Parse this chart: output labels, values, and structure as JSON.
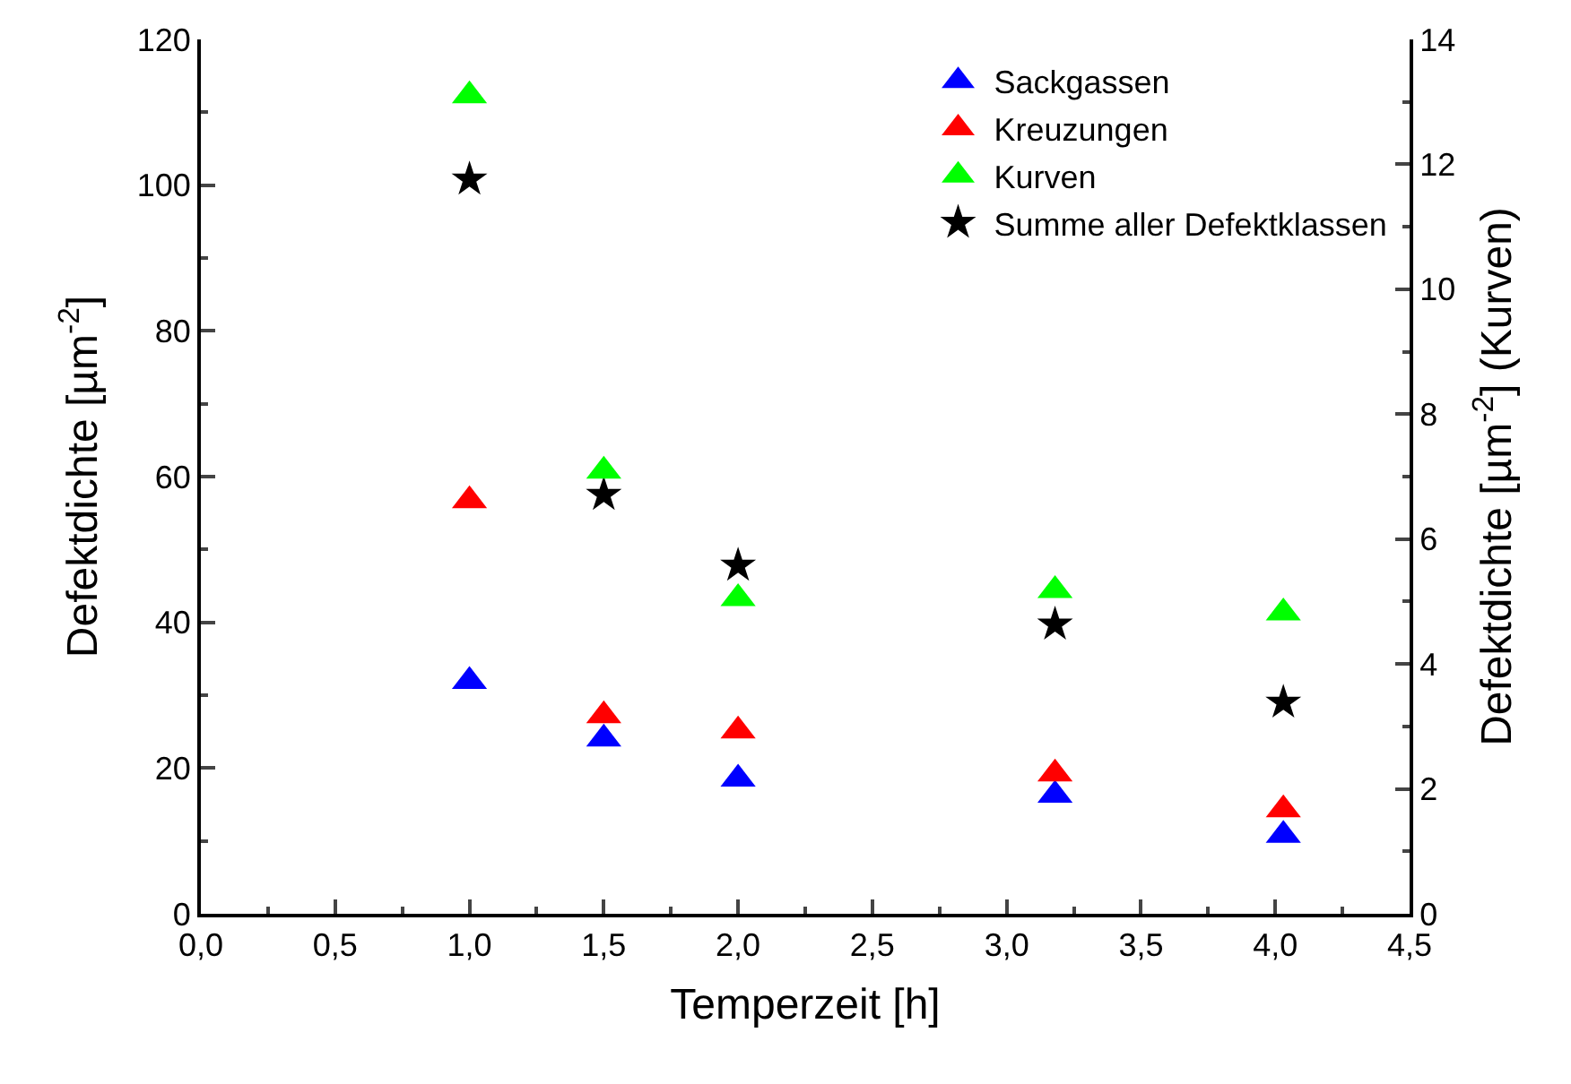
{
  "chart_data": {
    "type": "scatter",
    "xlabel": "Temperzeit [h]",
    "ylabel": "Defektdichte [µm$^{-2}$]",
    "y2label": "Defektdichte [µm$^{-2}$] (Kurven)",
    "x": [
      1.0,
      1.5,
      2.0,
      3.18,
      4.03
    ],
    "series": [
      {
        "name": "Sackgassen",
        "color": "#0000ff",
        "marker": "triangle",
        "values": [
          31.9,
          24.0,
          18.5,
          16.3,
          10.8
        ]
      },
      {
        "name": "Kreuzungen",
        "color": "#ff0000",
        "marker": "triangle",
        "values": [
          56.7,
          27.2,
          25.1,
          19.2,
          14.3
        ]
      },
      {
        "name": "Kurven",
        "color": "#00ff00",
        "marker": "triangle",
        "axis": "y2",
        "values": [
          13.1,
          7.09,
          5.05,
          5.18,
          4.82
        ]
      },
      {
        "name": "Summe aller Defektklassen",
        "color": "#000000",
        "marker": "star",
        "values": [
          100.8,
          57.5,
          47.8,
          39.7,
          29.0
        ]
      }
    ],
    "xlim": [
      0,
      4.5
    ],
    "xticks": [
      {
        "value": 0,
        "label": "0,0"
      },
      {
        "value": 0.5,
        "label": "0,5"
      },
      {
        "value": 1,
        "label": "1,0"
      },
      {
        "value": 1.5,
        "label": "1,5"
      },
      {
        "value": 2,
        "label": "2,0"
      },
      {
        "value": 2.5,
        "label": "2,5"
      },
      {
        "value": 3,
        "label": "3,0"
      },
      {
        "value": 3.5,
        "label": "3,5"
      },
      {
        "value": 4,
        "label": "4,0"
      },
      {
        "value": 4.5,
        "label": "4,5"
      }
    ],
    "ylim": [
      0,
      120
    ],
    "yticks": [
      0,
      20,
      40,
      60,
      80,
      100,
      120
    ],
    "y2lim": [
      0,
      14
    ],
    "y2ticks": [
      0,
      2,
      4,
      6,
      8,
      10,
      12,
      14
    ],
    "legend": "top right"
  }
}
